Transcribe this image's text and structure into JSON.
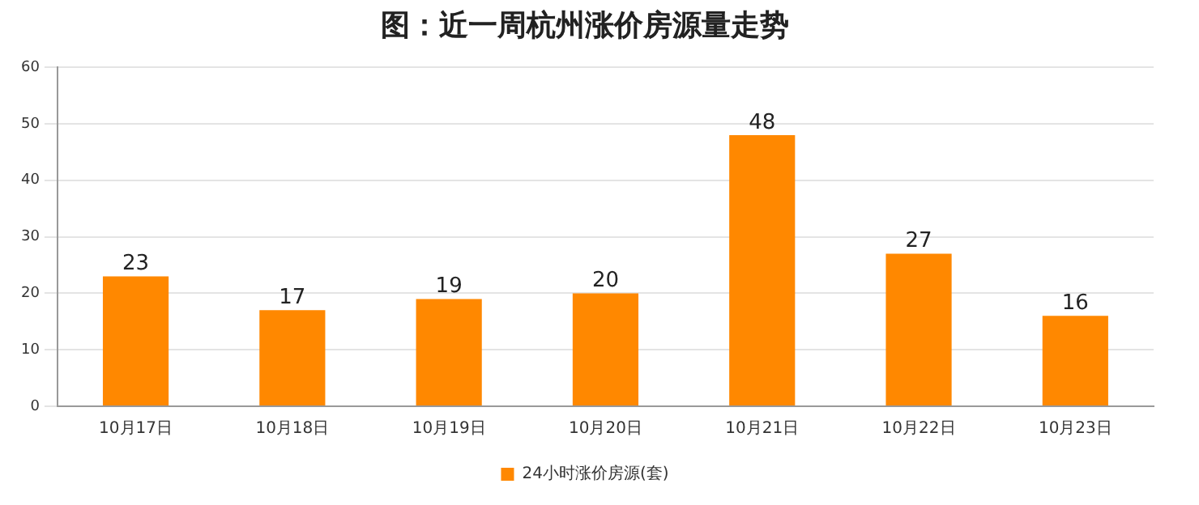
{
  "chart_data": {
    "type": "bar",
    "title": "图：近一周杭州涨价房源量走势",
    "categories": [
      "10月17日",
      "10月18日",
      "10月19日",
      "10月20日",
      "10月21日",
      "10月22日",
      "10月23日"
    ],
    "series": [
      {
        "name": "24小时涨价房源(套)",
        "color": "#ff8800",
        "values": [
          23,
          17,
          19,
          20,
          48,
          27,
          16
        ]
      }
    ],
    "ylim": [
      0,
      60
    ],
    "yticks": [
      0,
      10,
      20,
      30,
      40,
      50,
      60
    ],
    "grid": "y",
    "legend": "bottom",
    "data_labels": true
  }
}
